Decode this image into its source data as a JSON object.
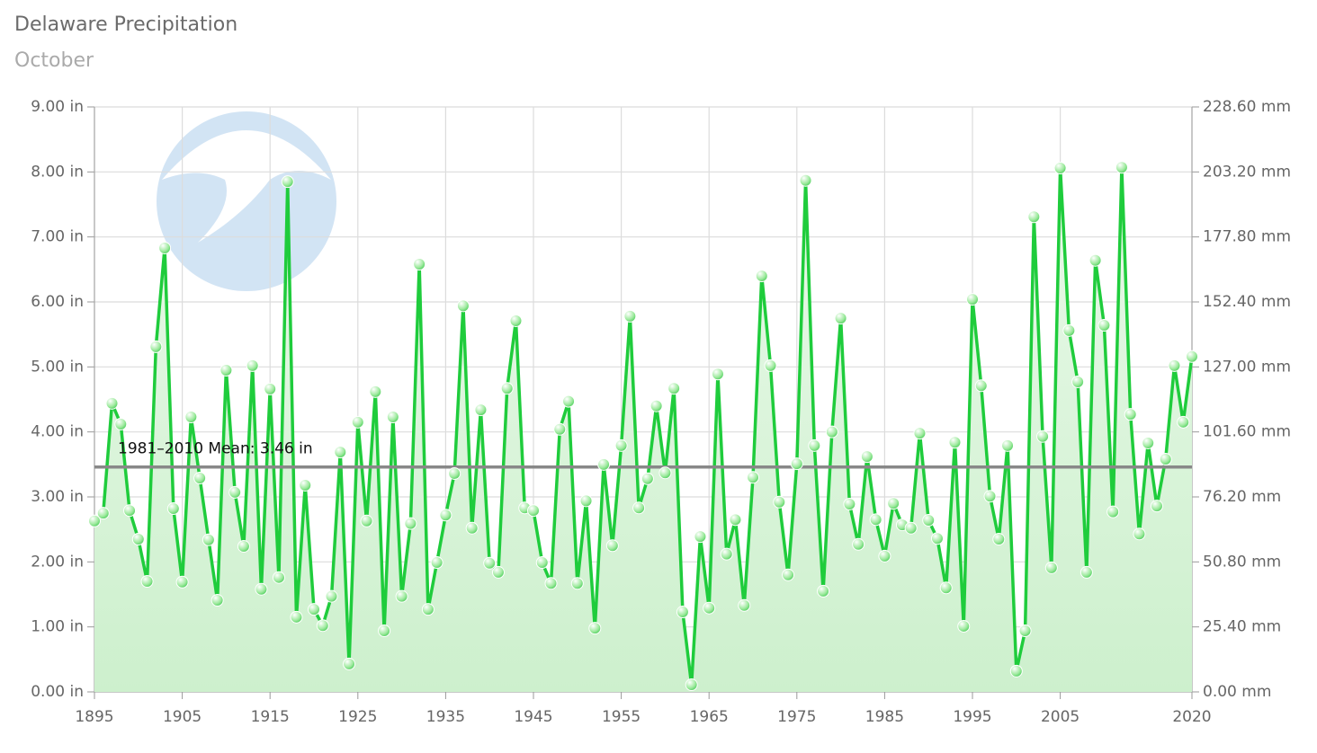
{
  "chart_data": {
    "type": "line",
    "title": "Delaware Precipitation",
    "subtitle": "October",
    "watermark": "NOAA",
    "x": [
      1895,
      1896,
      1897,
      1898,
      1899,
      1900,
      1901,
      1902,
      1903,
      1904,
      1905,
      1906,
      1907,
      1908,
      1909,
      1910,
      1911,
      1912,
      1913,
      1914,
      1915,
      1916,
      1917,
      1918,
      1919,
      1920,
      1921,
      1922,
      1923,
      1924,
      1925,
      1926,
      1927,
      1928,
      1929,
      1930,
      1931,
      1932,
      1933,
      1934,
      1935,
      1936,
      1937,
      1938,
      1939,
      1940,
      1941,
      1942,
      1943,
      1944,
      1945,
      1946,
      1947,
      1948,
      1949,
      1950,
      1951,
      1952,
      1953,
      1954,
      1955,
      1956,
      1957,
      1958,
      1959,
      1960,
      1961,
      1962,
      1963,
      1964,
      1965,
      1966,
      1967,
      1968,
      1969,
      1970,
      1971,
      1972,
      1973,
      1974,
      1975,
      1976,
      1977,
      1978,
      1979,
      1980,
      1981,
      1982,
      1983,
      1984,
      1985,
      1986,
      1987,
      1988,
      1989,
      1990,
      1991,
      1992,
      1993,
      1994,
      1995,
      1996,
      1997,
      1998,
      1999,
      2000,
      2001,
      2002,
      2003,
      2004,
      2005,
      2006,
      2007,
      2008,
      2009,
      2010,
      2011,
      2012,
      2013,
      2014,
      2015,
      2016,
      2017,
      2018,
      2019,
      2020
    ],
    "series": [
      {
        "color": "#1fcc3c",
        "values": [
          2.63,
          2.75,
          4.44,
          4.12,
          2.79,
          2.35,
          1.7,
          5.31,
          6.83,
          2.82,
          1.69,
          4.23,
          3.29,
          2.34,
          1.41,
          4.95,
          3.07,
          2.24,
          5.02,
          1.58,
          4.66,
          1.76,
          7.85,
          1.15,
          3.18,
          1.27,
          1.02,
          1.47,
          3.69,
          0.43,
          4.15,
          2.63,
          4.62,
          0.94,
          4.23,
          1.47,
          2.59,
          6.58,
          1.27,
          1.99,
          2.72,
          3.36,
          5.94,
          2.52,
          4.34,
          1.98,
          1.84,
          4.67,
          5.71,
          2.83,
          2.79,
          1.99,
          1.67,
          4.04,
          4.47,
          1.67,
          2.94,
          0.98,
          3.5,
          2.25,
          3.79,
          5.78,
          2.83,
          3.28,
          4.4,
          3.37,
          4.67,
          1.23,
          0.11,
          2.39,
          1.29,
          4.89,
          2.12,
          2.65,
          1.33,
          3.3,
          6.4,
          5.02,
          2.92,
          1.8,
          3.51,
          7.87,
          3.79,
          1.55,
          4.0,
          5.75,
          2.89,
          2.27,
          3.62,
          2.65,
          2.09,
          2.9,
          2.57,
          2.52,
          3.98,
          2.64,
          2.36,
          1.6,
          3.84,
          1.01,
          6.04,
          4.71,
          3.01,
          2.35,
          3.79,
          0.32,
          0.94,
          7.31,
          3.93,
          1.91,
          8.06,
          5.56,
          4.77,
          1.84,
          6.64,
          5.64,
          2.77,
          8.07,
          4.27,
          2.43,
          3.83,
          2.86,
          3.58,
          5.02,
          4.15,
          5.16
        ]
      }
    ],
    "mean": {
      "value": 3.46,
      "label": "1981–2010 Mean: 3.46 in"
    },
    "xlim": [
      1895,
      2020
    ],
    "xticks": [
      1895,
      1905,
      1915,
      1925,
      1935,
      1945,
      1955,
      1965,
      1975,
      1985,
      1995,
      2005,
      2020
    ],
    "ylim": [
      0,
      9
    ],
    "yticks": [
      {
        "value": 0,
        "label": "0.00 in"
      },
      {
        "value": 1,
        "label": "1.00 in"
      },
      {
        "value": 2,
        "label": "2.00 in"
      },
      {
        "value": 3,
        "label": "3.00 in"
      },
      {
        "value": 4,
        "label": "4.00 in"
      },
      {
        "value": 5,
        "label": "5.00 in"
      },
      {
        "value": 6,
        "label": "6.00 in"
      },
      {
        "value": 7,
        "label": "7.00 in"
      },
      {
        "value": 8,
        "label": "8.00 in"
      },
      {
        "value": 9,
        "label": "9.00 in"
      }
    ],
    "y2lim": [
      0,
      228.6
    ],
    "y2ticks": [
      {
        "value": 0,
        "label": "0.00 mm"
      },
      {
        "value": 25.4,
        "label": "25.40 mm"
      },
      {
        "value": 50.8,
        "label": "50.80 mm"
      },
      {
        "value": 76.2,
        "label": "76.20 mm"
      },
      {
        "value": 101.6,
        "label": "101.60 mm"
      },
      {
        "value": 127,
        "label": "127.00 mm"
      },
      {
        "value": 152.4,
        "label": "152.40 mm"
      },
      {
        "value": 177.8,
        "label": "177.80 mm"
      },
      {
        "value": 203.2,
        "label": "203.20 mm"
      },
      {
        "value": 228.6,
        "label": "228.60 mm"
      }
    ],
    "grid": true
  }
}
